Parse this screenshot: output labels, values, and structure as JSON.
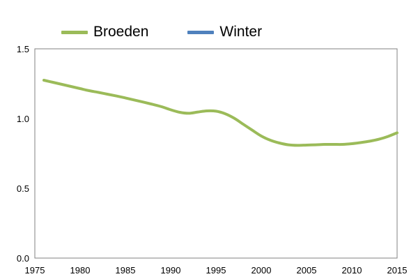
{
  "chart_data": {
    "type": "line",
    "title": "",
    "xlabel": "",
    "ylabel": "",
    "xlim": [
      1975,
      2015
    ],
    "ylim": [
      0,
      1.5
    ],
    "x_ticks": [
      1975,
      1980,
      1985,
      1990,
      1995,
      2000,
      2005,
      2010,
      2015
    ],
    "y_ticks": [
      0.0,
      0.5,
      1.0,
      1.5
    ],
    "x_tick_labels": [
      "1975",
      "1980",
      "1985",
      "1990",
      "1995",
      "2000",
      "2005",
      "2010",
      "2015"
    ],
    "y_tick_labels": [
      "0.0",
      "0.5",
      "1.0",
      "1.5"
    ],
    "grid": false,
    "legend_position": "top-left",
    "legend": [
      "Broeden",
      "Winter"
    ],
    "series": [
      {
        "name": "Broeden",
        "color": "#9bbb59",
        "x": [
          1976,
          1977,
          1978,
          1979,
          1980,
          1981,
          1982,
          1983,
          1984,
          1985,
          1986,
          1987,
          1988,
          1989,
          1990,
          1991,
          1992,
          1993,
          1994,
          1995,
          1996,
          1997,
          1998,
          1999,
          2000,
          2001,
          2002,
          2003,
          2004,
          2005,
          2006,
          2007,
          2008,
          2009,
          2010,
          2011,
          2012,
          2013,
          2014,
          2015
        ],
        "y": [
          1.275,
          1.26,
          1.245,
          1.23,
          1.215,
          1.2,
          1.188,
          1.175,
          1.162,
          1.148,
          1.133,
          1.118,
          1.102,
          1.085,
          1.063,
          1.045,
          1.038,
          1.047,
          1.055,
          1.053,
          1.035,
          1.003,
          0.96,
          0.917,
          0.875,
          0.845,
          0.825,
          0.812,
          0.808,
          0.81,
          0.812,
          0.815,
          0.815,
          0.815,
          0.82,
          0.828,
          0.838,
          0.852,
          0.872,
          0.898
        ]
      },
      {
        "name": "Winter",
        "color": "#4f81bd",
        "x": [],
        "y": []
      }
    ]
  }
}
